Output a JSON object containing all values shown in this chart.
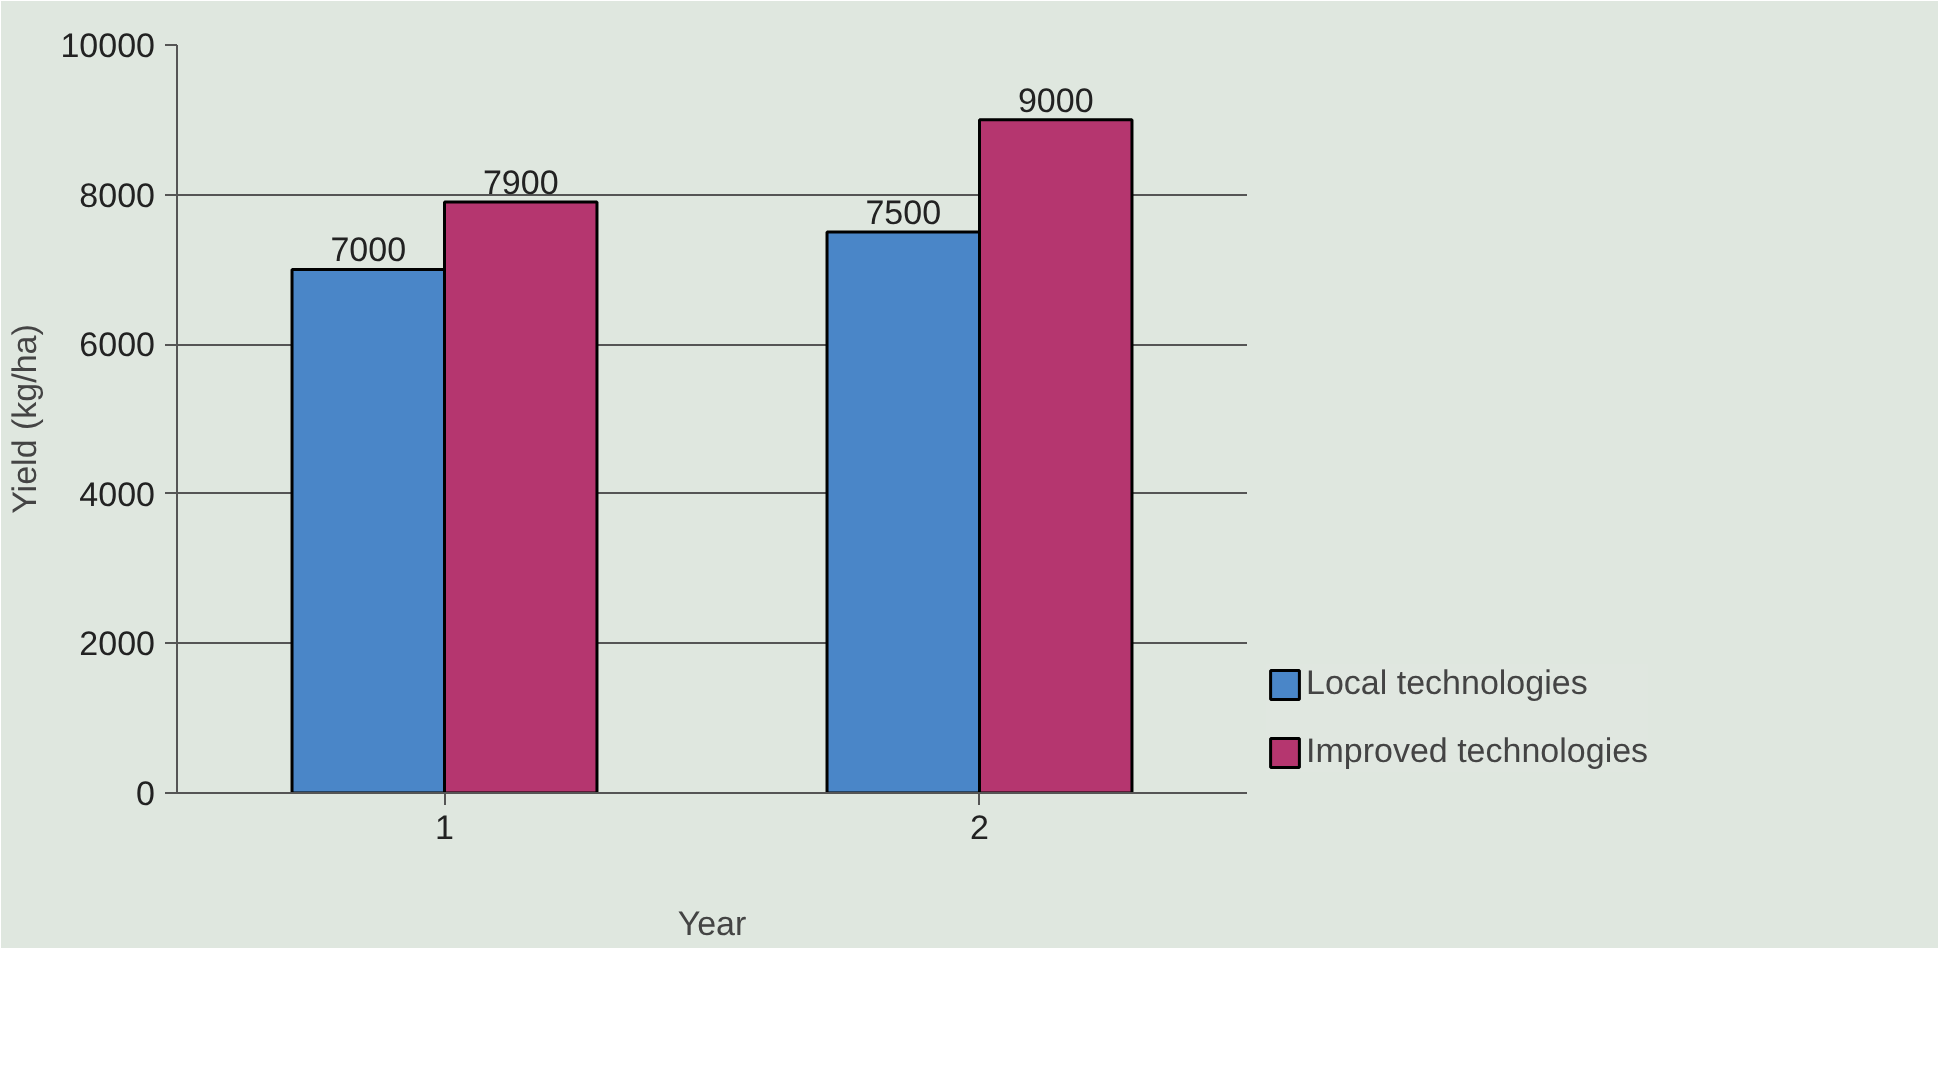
{
  "chart_data": {
    "type": "bar",
    "xlabel": "Year",
    "ylabel": "Yield (kg/ha)",
    "categories": [
      "1",
      "2"
    ],
    "series": [
      {
        "name": "Local technologies",
        "color": "#4a86c8",
        "values": [
          7000,
          7500
        ]
      },
      {
        "name": "Improved technologies",
        "color": "#b5366f",
        "values": [
          7900,
          9000
        ]
      }
    ],
    "ylim": [
      0,
      10000
    ],
    "yticks": [
      0,
      2000,
      4000,
      6000,
      8000,
      10000
    ],
    "grid": "y",
    "legend": "bottom right",
    "data_labels": true
  }
}
